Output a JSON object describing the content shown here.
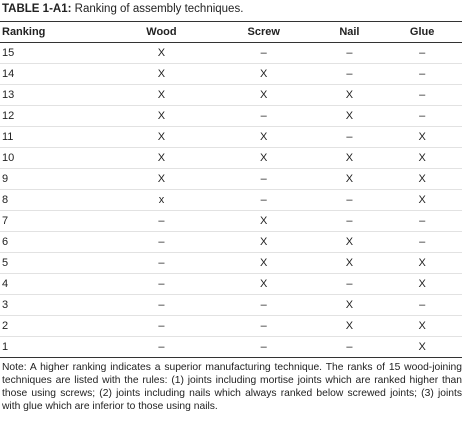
{
  "caption": {
    "label": "TABLE 1-A1:",
    "text": "Ranking of assembly techniques."
  },
  "table": {
    "header": [
      "Ranking",
      "Wood",
      "Screw",
      "Nail",
      "Glue"
    ],
    "rows": [
      [
        "15",
        "X",
        "–",
        "–",
        "–"
      ],
      [
        "14",
        "X",
        "X",
        "–",
        "–"
      ],
      [
        "13",
        "X",
        "X",
        "X",
        "–"
      ],
      [
        "12",
        "X",
        "–",
        "X",
        "–"
      ],
      [
        "11",
        "X",
        "X",
        "–",
        "X"
      ],
      [
        "10",
        "X",
        "X",
        "X",
        "X"
      ],
      [
        "9",
        "X",
        "–",
        "X",
        "X"
      ],
      [
        "8",
        "x",
        "–",
        "–",
        "X"
      ],
      [
        "7",
        "–",
        "X",
        "–",
        "–"
      ],
      [
        "6",
        "–",
        "X",
        "X",
        "–"
      ],
      [
        "5",
        "–",
        "X",
        "X",
        "X"
      ],
      [
        "4",
        "–",
        "X",
        "–",
        "X"
      ],
      [
        "3",
        "–",
        "–",
        "X",
        "–"
      ],
      [
        "2",
        "–",
        "–",
        "X",
        "X"
      ],
      [
        "1",
        "–",
        "–",
        "–",
        "X"
      ]
    ]
  },
  "note": "Note: A higher ranking indicates a superior manufacturing technique. The ranks of 15 wood-joining techniques are listed with the rules: (1) joints including mortise joints which are ranked higher than those using screws; (2) joints including nails which always ranked below screwed joints; (3) joints with glue which are inferior to those using nails."
}
